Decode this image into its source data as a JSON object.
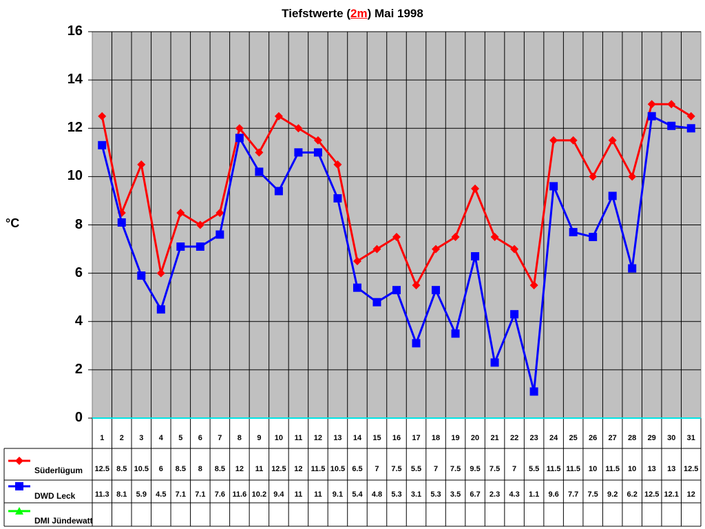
{
  "title": {
    "prefix": "Tiefstwerte (",
    "highlight": "2m",
    "suffix": ") Mai 1998"
  },
  "colors": {
    "plot_bg": "#c0c0c0",
    "grid": "#000000",
    "baseline": "#00e5e5",
    "suederluegum": "#ff0000",
    "dwd_leck": "#0000ff",
    "dmi_juendewatt": "#00ff00"
  },
  "chart_data": {
    "type": "line",
    "title": "Tiefstwerte (2m) Mai 1998",
    "xlabel": "",
    "ylabel": "°C",
    "ylim": [
      0,
      16
    ],
    "yticks": [
      0,
      2,
      4,
      6,
      8,
      10,
      12,
      14,
      16
    ],
    "grid": true,
    "legend_position": "data-table-left",
    "categories": [
      "1",
      "2",
      "3",
      "4",
      "5",
      "6",
      "7",
      "8",
      "9",
      "10",
      "11",
      "12",
      "13",
      "14",
      "15",
      "16",
      "17",
      "18",
      "19",
      "20",
      "21",
      "22",
      "23",
      "24",
      "25",
      "26",
      "27",
      "28",
      "29",
      "30",
      "31"
    ],
    "series": [
      {
        "name": "Süderlügum",
        "marker": "diamond",
        "color": "#ff0000",
        "values": [
          12.5,
          8.5,
          10.5,
          6,
          8.5,
          8,
          8.5,
          12,
          11,
          12.5,
          12,
          11.5,
          10.5,
          6.5,
          7,
          7.5,
          5.5,
          7,
          7.5,
          9.5,
          7.5,
          7,
          5.5,
          11.5,
          11.5,
          10,
          11.5,
          10,
          13,
          13,
          12.5
        ]
      },
      {
        "name": "DWD Leck",
        "marker": "square",
        "color": "#0000ff",
        "values": [
          11.3,
          8.1,
          5.9,
          4.5,
          7.1,
          7.1,
          7.6,
          11.6,
          10.2,
          9.4,
          11,
          11,
          9.1,
          5.4,
          4.8,
          5.3,
          3.1,
          5.3,
          3.5,
          6.7,
          2.3,
          4.3,
          1.1,
          9.6,
          7.7,
          7.5,
          9.2,
          6.2,
          12.5,
          12.1,
          12
        ]
      },
      {
        "name": "DMI Jündewatt",
        "marker": "triangle",
        "color": "#00ff00",
        "values": [
          null,
          null,
          null,
          null,
          null,
          null,
          null,
          null,
          null,
          null,
          null,
          null,
          null,
          null,
          null,
          null,
          null,
          null,
          null,
          null,
          null,
          null,
          null,
          null,
          null,
          null,
          null,
          null,
          null,
          null,
          null
        ]
      }
    ]
  }
}
